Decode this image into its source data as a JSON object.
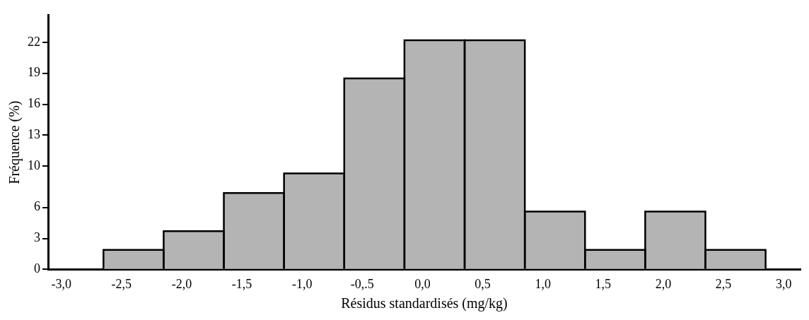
{
  "chart_data": {
    "type": "histogram",
    "xlabel": "Résidus standardisés (mg/kg)",
    "ylabel": "Fréquence (%)",
    "bins": [
      -2.65,
      -2.15,
      -1.65,
      -1.15,
      -0.65,
      -0.15,
      0.35,
      0.85,
      1.35,
      1.85,
      2.35,
      2.85
    ],
    "values": [
      1.9,
      3.7,
      7.4,
      9.3,
      18.5,
      22.2,
      22.2,
      5.6,
      1.9,
      5.6,
      1.9
    ],
    "color": "#b4b4b4",
    "xlim": [
      -3.11,
      3.14
    ],
    "xticks": [
      {
        "value": -3,
        "label": "-3,0"
      },
      {
        "value": -2.5,
        "label": "-2,5"
      },
      {
        "value": -2,
        "label": "-2,0"
      },
      {
        "value": -1.5,
        "label": "-1,5"
      },
      {
        "value": -1,
        "label": "-1,0"
      },
      {
        "value": -0.5,
        "label": "-0,.5"
      },
      {
        "value": 0,
        "label": "0,0"
      },
      {
        "value": 0.5,
        "label": "0,5"
      },
      {
        "value": 1,
        "label": "1,0"
      },
      {
        "value": 1.5,
        "label": "1,5"
      },
      {
        "value": 2,
        "label": "2,0"
      },
      {
        "value": 2.5,
        "label": "2,5"
      },
      {
        "value": 3,
        "label": "3,0"
      }
    ],
    "ylim": [
      0,
      24.6
    ],
    "yticks": [
      0,
      3,
      6,
      10,
      13,
      16,
      19,
      22
    ],
    "grid": false,
    "legend": false
  }
}
